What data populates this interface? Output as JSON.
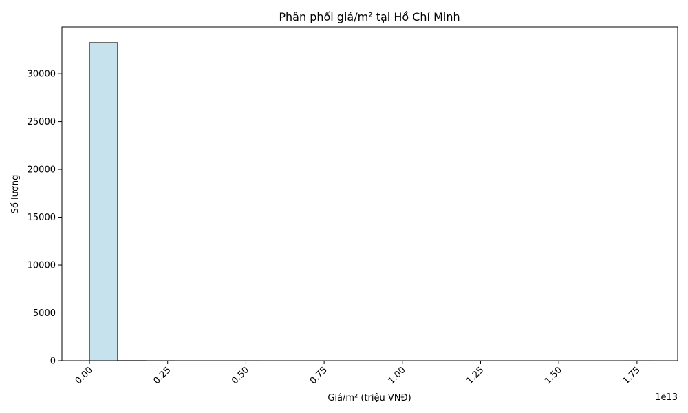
{
  "chart_data": {
    "type": "bar",
    "title": "Phân phối giá/m² tại Hồ Chí Minh",
    "xlabel": "Giá/m² (triệu VNĐ)",
    "ylabel": "Số lượng",
    "x_offset_label": "1e13",
    "x_ticks": [
      0,
      0.25,
      0.5,
      0.75,
      1.0,
      1.25,
      1.5,
      1.75
    ],
    "x_tick_labels": [
      "0.00",
      "0.25",
      "0.50",
      "0.75",
      "1.00",
      "1.25",
      "1.50",
      "1.75"
    ],
    "y_ticks": [
      0,
      5000,
      10000,
      15000,
      20000,
      25000,
      30000
    ],
    "y_tick_labels": [
      "0",
      "5000",
      "10000",
      "15000",
      "20000",
      "25000",
      "30000"
    ],
    "xlim": [
      -0.088,
      1.88
    ],
    "ylim": [
      0,
      34900
    ],
    "bins": [
      {
        "x0": 0,
        "x1": 0.09,
        "count": 33250
      },
      {
        "x0": 0.09,
        "x1": 0.18,
        "count": 10
      },
      {
        "x0": 0.18,
        "x1": 0.27,
        "count": 3
      },
      {
        "x0": 0.27,
        "x1": 0.36,
        "count": 1
      },
      {
        "x0": 0.36,
        "x1": 0.45,
        "count": 1
      },
      {
        "x0": 0.45,
        "x1": 0.54,
        "count": 1
      },
      {
        "x0": 0.54,
        "x1": 0.63,
        "count": 0
      },
      {
        "x0": 0.63,
        "x1": 0.72,
        "count": 0
      },
      {
        "x0": 0.72,
        "x1": 0.81,
        "count": 0
      },
      {
        "x0": 0.81,
        "x1": 0.9,
        "count": 0
      },
      {
        "x0": 0.9,
        "x1": 0.99,
        "count": 0
      },
      {
        "x0": 0.99,
        "x1": 1.08,
        "count": 0
      },
      {
        "x0": 1.08,
        "x1": 1.17,
        "count": 0
      },
      {
        "x0": 1.17,
        "x1": 1.26,
        "count": 0
      },
      {
        "x0": 1.26,
        "x1": 1.35,
        "count": 0
      },
      {
        "x0": 1.35,
        "x1": 1.44,
        "count": 0
      },
      {
        "x0": 1.44,
        "x1": 1.53,
        "count": 0
      },
      {
        "x0": 1.53,
        "x1": 1.62,
        "count": 0
      },
      {
        "x0": 1.62,
        "x1": 1.71,
        "count": 0
      },
      {
        "x0": 1.71,
        "x1": 1.8,
        "count": 1
      }
    ],
    "bar_color": "#c6e3ed",
    "edge_color": "#000000",
    "grid": false,
    "legend": "none"
  }
}
